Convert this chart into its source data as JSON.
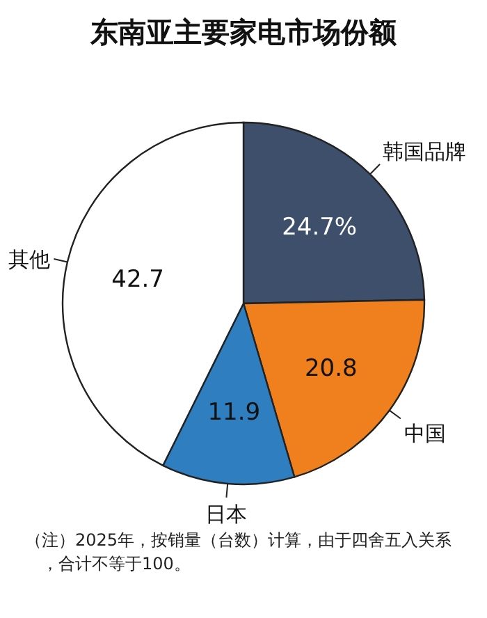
{
  "chart_data": {
    "type": "pie",
    "title": "东南亚主要家电市场份额",
    "categories": [
      "韩国品牌",
      "中国",
      "日本",
      "其他"
    ],
    "values": [
      24.7,
      20.8,
      11.9,
      42.7
    ],
    "colors": [
      "#3d4f6b",
      "#f07f1e",
      "#2f7fc0",
      "#ffffff"
    ],
    "value_labels": [
      "24.7%",
      "20.8",
      "11.9",
      "42.7"
    ],
    "annotations": [
      "（注）2025年，按销量（台数）计算，由于四舍五入关系，合计不等于100。"
    ]
  }
}
